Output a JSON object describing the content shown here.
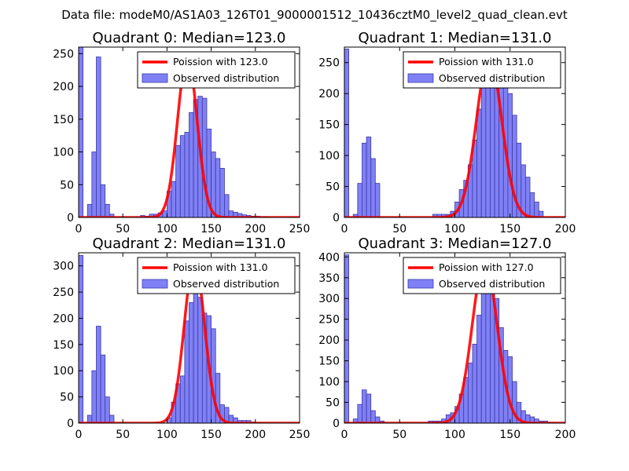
{
  "figure": {
    "suptitle": "Data file: modeM0/AS1A03_126T01_9000001512_10436cztM0_level2_quad_clean.evt"
  },
  "chart_data": [
    {
      "type": "histogram+line",
      "title": "Quadrant 0: Median=123.0",
      "xlim": [
        0,
        250
      ],
      "ylim": [
        0,
        260
      ],
      "xticks": [
        0,
        50,
        100,
        150,
        200,
        250
      ],
      "yticks": [
        0,
        50,
        100,
        150,
        200,
        250
      ],
      "bin_width": 5,
      "bin_starts": [
        0,
        10,
        15,
        20,
        25,
        30,
        35,
        70,
        75,
        80,
        85,
        90,
        95,
        100,
        105,
        110,
        115,
        120,
        125,
        130,
        135,
        140,
        145,
        150,
        155,
        160,
        165,
        170,
        175,
        180,
        185,
        190,
        195,
        200,
        205,
        210
      ],
      "bin_counts": [
        260,
        20,
        100,
        245,
        50,
        20,
        5,
        3,
        2,
        5,
        5,
        7,
        10,
        40,
        55,
        110,
        125,
        130,
        160,
        180,
        185,
        182,
        135,
        100,
        90,
        75,
        35,
        10,
        8,
        6,
        4,
        3,
        2,
        2,
        1,
        1
      ],
      "poisson_mean": 123.0,
      "poisson_peak": 245,
      "legend": [
        "Poission with 123.0",
        "Observed distribution"
      ],
      "legend_loc": "upper right"
    },
    {
      "type": "histogram+line",
      "title": "Quadrant 1: Median=131.0",
      "xlim": [
        0,
        200
      ],
      "ylim": [
        0,
        275
      ],
      "xticks": [
        0,
        50,
        100,
        150,
        200
      ],
      "yticks": [
        0,
        50,
        100,
        150,
        200,
        250
      ],
      "bin_width": 4,
      "bin_starts": [
        0,
        8,
        12,
        16,
        20,
        24,
        28,
        80,
        84,
        88,
        92,
        96,
        100,
        104,
        108,
        112,
        116,
        120,
        124,
        128,
        132,
        136,
        140,
        144,
        148,
        152,
        156,
        160,
        164,
        168,
        172,
        176
      ],
      "bin_counts": [
        272,
        5,
        55,
        120,
        130,
        95,
        55,
        5,
        5,
        5,
        5,
        10,
        25,
        45,
        60,
        85,
        125,
        175,
        230,
        210,
        255,
        265,
        240,
        230,
        200,
        165,
        120,
        85,
        65,
        40,
        25,
        10
      ],
      "poisson_mean": 131.0,
      "poisson_peak": 260,
      "legend": [
        "Poission with 131.0",
        "Observed distribution"
      ],
      "legend_loc": "upper right"
    },
    {
      "type": "histogram+line",
      "title": "Quadrant 2: Median=131.0",
      "xlim": [
        0,
        250
      ],
      "ylim": [
        0,
        325
      ],
      "xticks": [
        0,
        50,
        100,
        150,
        200,
        250
      ],
      "yticks": [
        0,
        50,
        100,
        150,
        200,
        250,
        300
      ],
      "bin_width": 5,
      "bin_starts": [
        0,
        10,
        15,
        20,
        25,
        30,
        35,
        100,
        105,
        110,
        115,
        120,
        125,
        130,
        135,
        140,
        145,
        150,
        155,
        160,
        165,
        170,
        175,
        180,
        185,
        190,
        195,
        200
      ],
      "bin_counts": [
        320,
        15,
        100,
        185,
        130,
        50,
        15,
        10,
        40,
        75,
        90,
        195,
        230,
        255,
        240,
        210,
        205,
        180,
        95,
        35,
        30,
        15,
        10,
        5,
        5,
        5,
        2,
        1
      ],
      "poisson_mean": 131.0,
      "poisson_peak": 310,
      "legend": [
        "Poission with 131.0",
        "Observed distribution"
      ],
      "legend_loc": "upper right"
    },
    {
      "type": "histogram+line",
      "title": "Quadrant 3: Median=127.0",
      "xlim": [
        0,
        200
      ],
      "ylim": [
        0,
        410
      ],
      "xticks": [
        0,
        50,
        100,
        150,
        200
      ],
      "yticks": [
        0,
        50,
        100,
        150,
        200,
        250,
        300,
        350,
        400
      ],
      "bin_width": 4,
      "bin_starts": [
        0,
        8,
        12,
        16,
        20,
        24,
        28,
        32,
        76,
        80,
        84,
        88,
        92,
        96,
        100,
        104,
        108,
        112,
        116,
        120,
        124,
        128,
        132,
        136,
        140,
        144,
        148,
        152,
        156,
        160,
        164,
        168,
        172,
        176,
        180,
        184,
        188
      ],
      "bin_counts": [
        405,
        10,
        45,
        80,
        70,
        30,
        15,
        5,
        5,
        5,
        5,
        10,
        20,
        25,
        40,
        70,
        110,
        145,
        190,
        260,
        360,
        335,
        335,
        300,
        230,
        175,
        160,
        100,
        50,
        30,
        20,
        15,
        10,
        5,
        5,
        2,
        1
      ],
      "poisson_mean": 127.0,
      "poisson_peak": 390,
      "legend": [
        "Poission with 127.0",
        "Observed distribution"
      ],
      "legend_loc": "upper right"
    }
  ],
  "colors": {
    "bar_fill": "#8080f5",
    "bar_edge": "#3a3aa8",
    "poisson_line": "#ff0000"
  }
}
